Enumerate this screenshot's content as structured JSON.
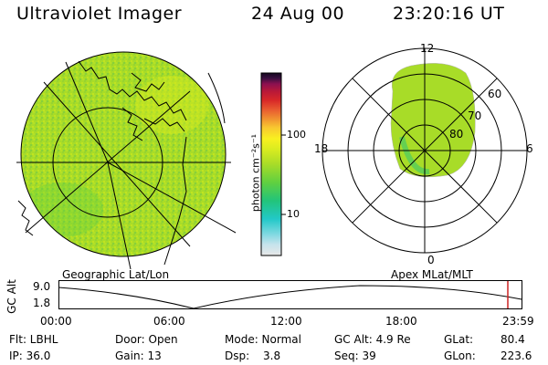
{
  "header": {
    "instrument": "Ultraviolet Imager",
    "date": "24 Aug 00",
    "time": "23:20:16 UT"
  },
  "geo_panel": {
    "label": "Geographic Lat/Lon"
  },
  "colorbar": {
    "unit_label": "photon cm⁻²s⁻¹",
    "ticks": [
      "100",
      "10"
    ],
    "colors": [
      "#e8e8e8",
      "#c6e3ec",
      "#7cd8e0",
      "#22c8c8",
      "#22c47a",
      "#60d040",
      "#a8dc28",
      "#d8ec20",
      "#f8f020",
      "#f8c830",
      "#f09030",
      "#e85a30",
      "#d82828",
      "#b81838",
      "#8c1050",
      "#3c1040",
      "#140820"
    ]
  },
  "polar_panel": {
    "label": "Apex MLat/MLT",
    "mlt_labels": {
      "top": "12",
      "right": "6",
      "bottom": "0",
      "left": "18"
    },
    "lat_labels": [
      "60",
      "70",
      "80"
    ]
  },
  "alt_plot": {
    "axis_title": "GC Alt",
    "y_ticks": [
      "9.0",
      "1.8"
    ],
    "x_ticks": [
      "00:00",
      "06:00",
      "12:00",
      "18:00",
      "23:59"
    ]
  },
  "status": {
    "filter": "Flt: LBHL",
    "ip": "IP: 36.0",
    "door": "Door: Open",
    "gain": "Gain: 13",
    "mode": "Mode: Normal",
    "dsp": "Dsp:",
    "dsp_value": "3.8",
    "gc_alt": "GC Alt: 4.9 Re",
    "seq": "Seq: 39",
    "glat": "GLat:",
    "glat_value": "80.4",
    "glon": "GLon:",
    "glon_value": "223.6"
  },
  "colors": {
    "auroral_fill": "#a8dc28",
    "cursor_line": "#cc2222"
  }
}
